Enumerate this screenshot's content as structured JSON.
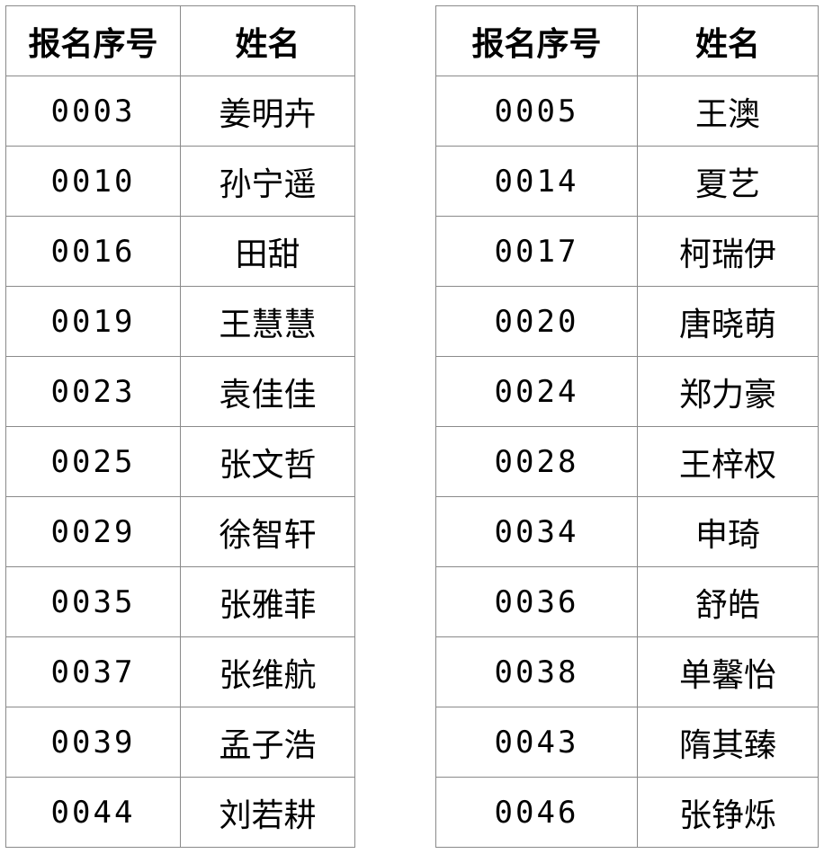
{
  "tables": [
    {
      "headers": [
        "报名序号",
        "姓名"
      ],
      "rows": [
        [
          "0003",
          "姜明卉"
        ],
        [
          "0010",
          "孙宁遥"
        ],
        [
          "0016",
          "田甜"
        ],
        [
          "0019",
          "王慧慧"
        ],
        [
          "0023",
          "袁佳佳"
        ],
        [
          "0025",
          "张文哲"
        ],
        [
          "0029",
          "徐智轩"
        ],
        [
          "0035",
          "张雅菲"
        ],
        [
          "0037",
          "张维航"
        ],
        [
          "0039",
          "孟子浩"
        ],
        [
          "0044",
          "刘若耕"
        ]
      ]
    },
    {
      "headers": [
        "报名序号",
        "姓名"
      ],
      "rows": [
        [
          "0005",
          "王澳"
        ],
        [
          "0014",
          "夏艺"
        ],
        [
          "0017",
          "柯瑞伊"
        ],
        [
          "0020",
          "唐晓萌"
        ],
        [
          "0024",
          "郑力豪"
        ],
        [
          "0028",
          "王梓权"
        ],
        [
          "0034",
          "申琦"
        ],
        [
          "0036",
          "舒皓"
        ],
        [
          "0038",
          "单馨怡"
        ],
        [
          "0043",
          "隋其臻"
        ],
        [
          "0046",
          "张铮烁"
        ]
      ]
    }
  ]
}
